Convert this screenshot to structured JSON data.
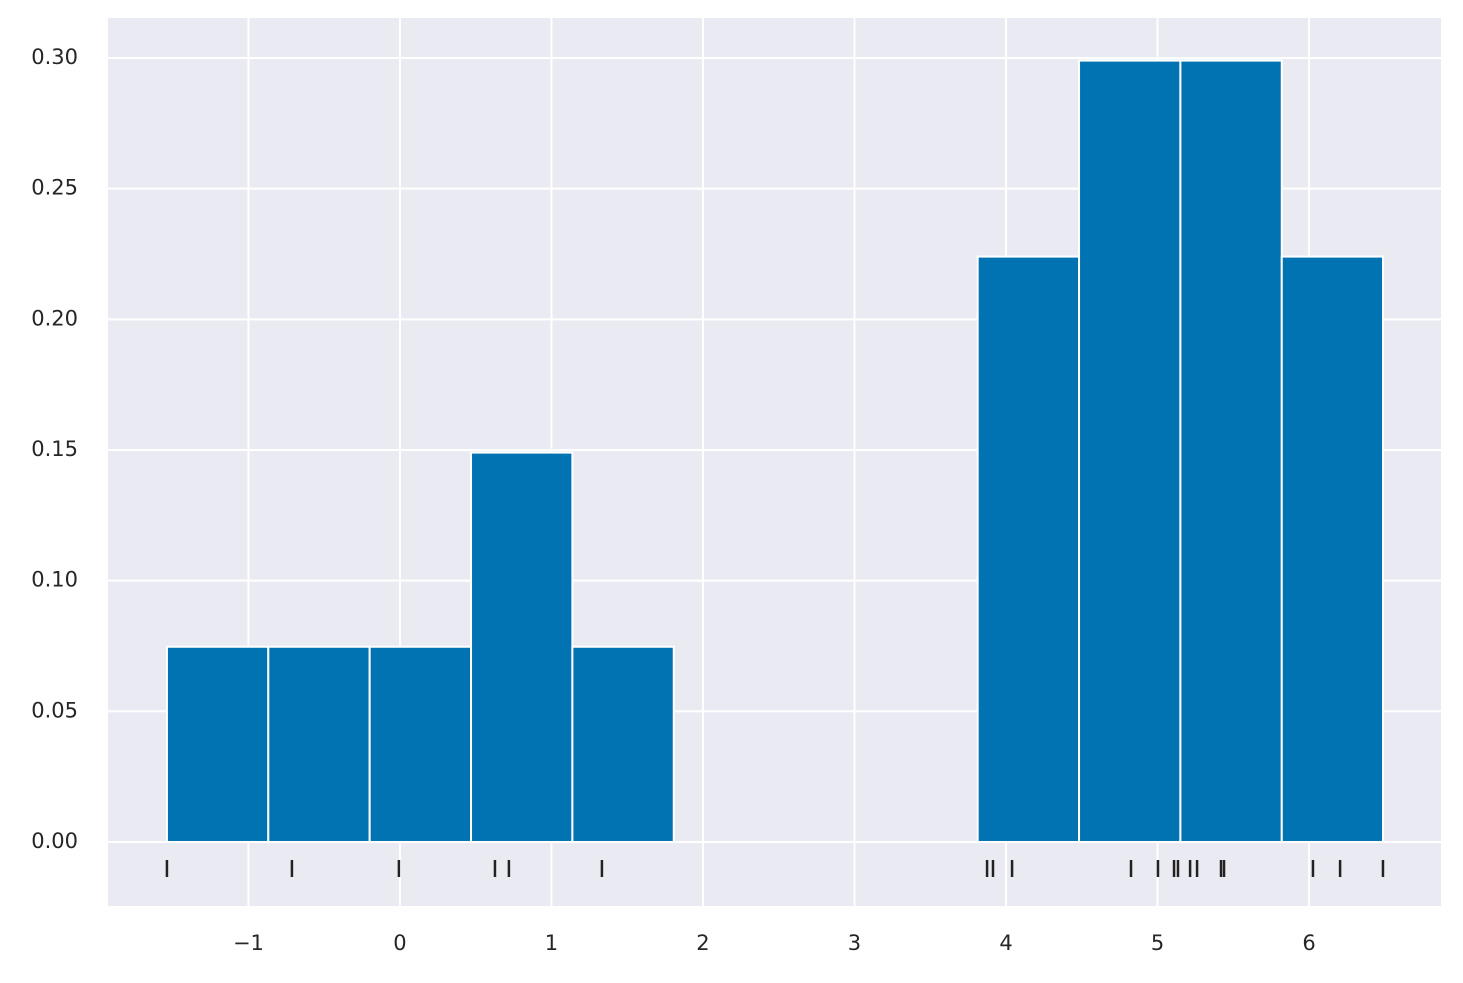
{
  "chart_data": {
    "type": "histogram",
    "bins": [
      -1.538,
      -0.869,
      -0.2,
      0.469,
      1.138,
      1.807,
      2.475,
      3.144,
      3.813,
      4.482,
      5.151,
      5.82,
      6.488
    ],
    "values": [
      0.0747,
      0.0747,
      0.0747,
      0.149,
      0.0747,
      0,
      0,
      0,
      0.224,
      0.299,
      0.299,
      0.224
    ],
    "color": "#0173b2",
    "rug": [
      -1.538,
      -0.713,
      -0.007,
      0.627,
      0.719,
      1.333,
      3.875,
      3.914,
      4.04,
      4.825,
      5.003,
      5.109,
      5.135,
      5.215,
      5.261,
      5.419,
      5.439,
      6.026,
      6.205,
      6.488
    ],
    "rug_color": "#222222",
    "xlim": [
      -1.927,
      6.871
    ],
    "ylim": [
      -0.0245,
      0.3153
    ],
    "xticks": [
      {
        "value": -1,
        "label": "−1"
      },
      0,
      1,
      2,
      3,
      4,
      5,
      6
    ],
    "yticks": [
      {
        "value": 0,
        "label": "0.00"
      },
      {
        "value": 0.05,
        "label": "0.05"
      },
      {
        "value": 0.1,
        "label": "0.10"
      },
      {
        "value": 0.15,
        "label": "0.15"
      },
      {
        "value": 0.2,
        "label": "0.20"
      },
      {
        "value": 0.25,
        "label": "0.25"
      },
      {
        "value": 0.3,
        "label": "0.30"
      }
    ],
    "grid": true
  }
}
